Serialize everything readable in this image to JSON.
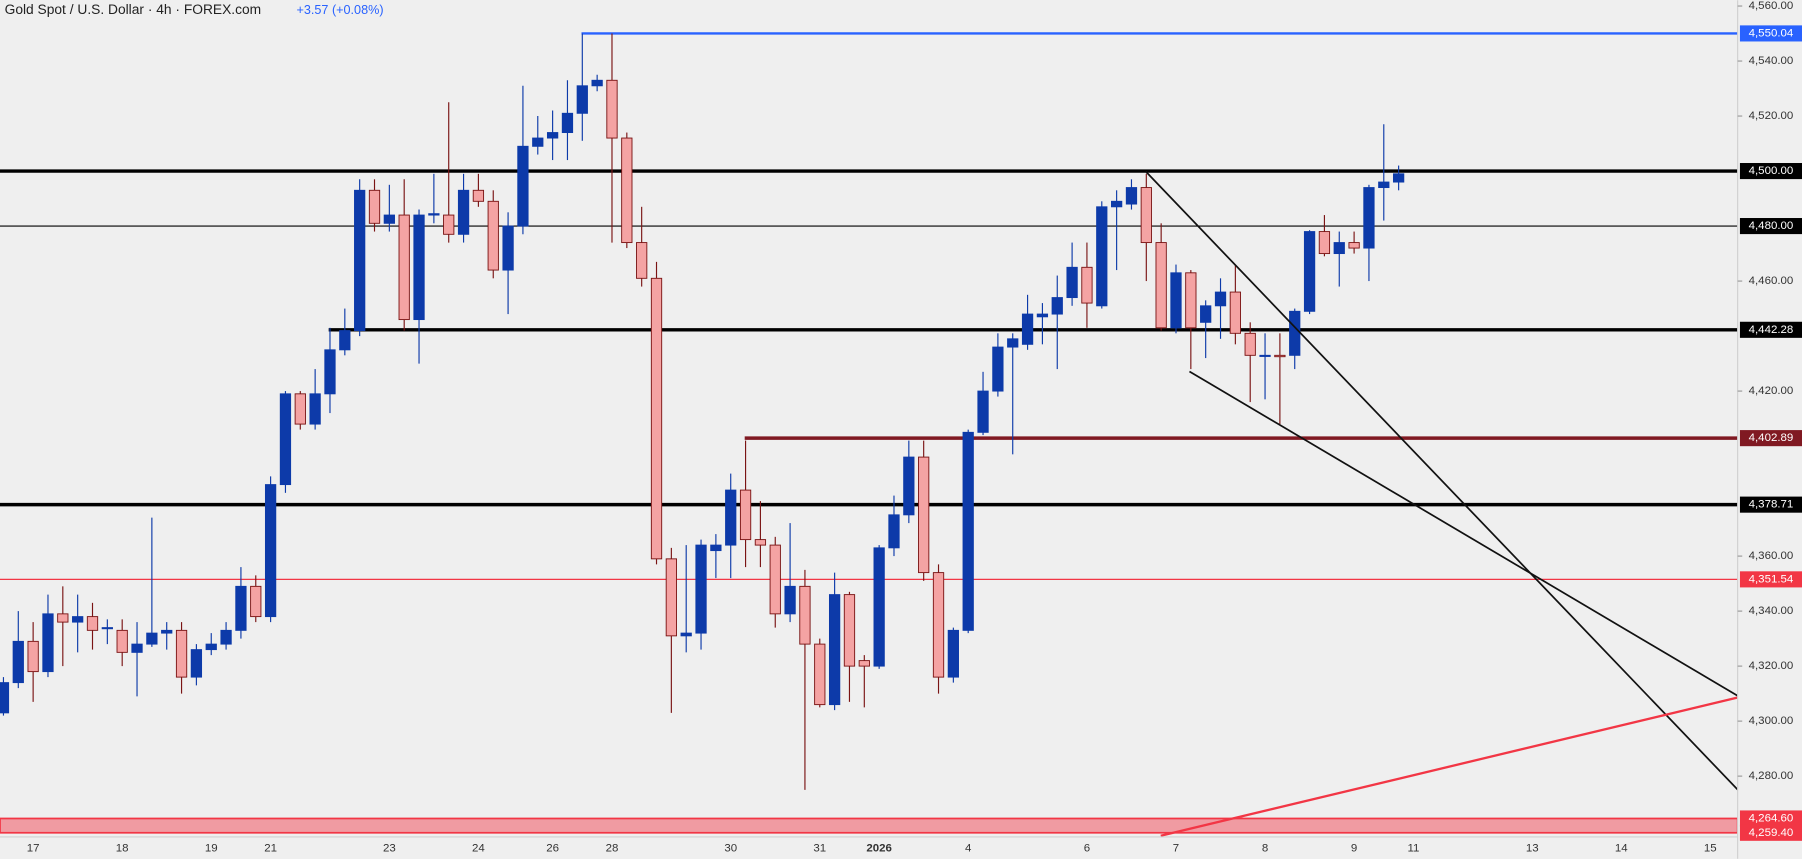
{
  "chart_data": {
    "type": "candlestick",
    "title": "Gold Spot / U.S. Dollar · 4h · FOREX.com",
    "change": "+3.57 (+0.08%)",
    "categories": [
      null,
      null,
      "17",
      null,
      null,
      null,
      null,
      null,
      "18",
      null,
      null,
      null,
      null,
      null,
      "19",
      null,
      null,
      null,
      "21",
      null,
      null,
      null,
      null,
      null,
      null,
      null,
      "23",
      null,
      null,
      null,
      null,
      null,
      "24",
      null,
      null,
      null,
      null,
      "26",
      null,
      null,
      null,
      "28",
      null,
      null,
      null,
      null,
      null,
      null,
      null,
      "30",
      null,
      null,
      null,
      null,
      null,
      "31",
      null,
      null,
      null,
      "2026",
      null,
      null,
      null,
      null,
      null,
      "4",
      null,
      null,
      null,
      null,
      null,
      null,
      null,
      "6",
      null,
      null,
      null,
      null,
      null,
      "7",
      null,
      null,
      null,
      null,
      null,
      "8",
      null,
      null,
      null,
      null,
      null,
      "9",
      null,
      null,
      null,
      "11",
      null,
      null,
      null,
      null,
      null,
      null,
      null,
      "13",
      null,
      null,
      null,
      null,
      null,
      "14",
      null,
      null,
      null,
      null,
      null,
      "15",
      null
    ],
    "open": [
      4303,
      4314,
      4329,
      4318,
      4339,
      4336,
      4338,
      4334,
      4333,
      4325,
      4328,
      4332,
      4333,
      4316,
      4326,
      4328,
      4333,
      4349,
      4338,
      4386,
      4419,
      4408,
      4419,
      4435,
      4442,
      4493,
      4481,
      4484,
      4446,
      4484,
      4484,
      4477,
      4493,
      4489,
      4464,
      4480,
      4509,
      4512,
      4514,
      4521,
      4531,
      4533,
      4512,
      4474,
      4461,
      4359,
      4331,
      4332,
      4362,
      4364,
      4384,
      4366,
      4364,
      4339,
      4349,
      4328,
      4306,
      4346,
      4322,
      4320,
      4363,
      4375,
      4396,
      4354,
      4316,
      4333,
      4405,
      4420,
      4436,
      4437,
      4447,
      4448,
      4454,
      4465,
      4451,
      4487,
      4488,
      4494,
      4474,
      4443,
      4463,
      4445,
      4451,
      4456,
      4441,
      4433,
      4433,
      4433,
      4449,
      4478,
      4470,
      4474,
      4472,
      4494,
      4496,
      null,
      null,
      null,
      null,
      null,
      null,
      null,
      null,
      null,
      null,
      null,
      null,
      null,
      null,
      null,
      null,
      null,
      null,
      null,
      null,
      null,
      null
    ],
    "high": [
      4316,
      4340,
      4336,
      4346,
      4349,
      4346,
      4343,
      4337,
      4337,
      4336,
      4374,
      4336,
      4336,
      4328,
      4332,
      4336,
      4356,
      4353,
      4389,
      4420,
      4420,
      4428,
      4443,
      4450,
      4497,
      4497,
      4495,
      4497,
      4486,
      4499,
      4525,
      4499,
      4499,
      4493,
      4485,
      4531,
      4520,
      4522,
      4533,
      4550,
      4535,
      4550,
      4514,
      4487,
      4467,
      4363,
      4364,
      4366,
      4368,
      4390,
      4402,
      4380,
      4367,
      4372,
      4355,
      4330,
      4354,
      4347,
      4324,
      4364,
      4382,
      4402,
      4402,
      4357,
      4334,
      4406,
      4427,
      4441,
      4441,
      4455,
      4452,
      4462,
      4474,
      4474,
      4489,
      4493,
      4497,
      4499,
      4481,
      4466,
      4464,
      4453,
      4461,
      4466,
      4445,
      4441,
      4441,
      4450,
      4478.5,
      4484,
      4478,
      4478,
      4495,
      4517,
      4502,
      null,
      null,
      null,
      null,
      null,
      null,
      null,
      null,
      null,
      null,
      null,
      null,
      null,
      null,
      null,
      null,
      null,
      null,
      null,
      null,
      null,
      null
    ],
    "low": [
      4302,
      4312,
      4307,
      4316,
      4320,
      4325,
      4326,
      4328,
      4320,
      4309,
      4327,
      4326,
      4310,
      4313,
      4324,
      4326,
      4330,
      4336,
      4336,
      4383,
      4406,
      4406,
      4412,
      4433,
      4440,
      4478,
      4478,
      4442,
      4430,
      4481,
      4474,
      4474,
      4487,
      4461,
      4448,
      4477,
      4506,
      4504,
      4504,
      4511,
      4529,
      4474,
      4472,
      4458,
      4357,
      4303,
      4325,
      4326,
      4352,
      4352,
      4356,
      4356,
      4334,
      4336,
      4275,
      4305,
      4304,
      4307,
      4305,
      4319,
      4360,
      4372,
      4351,
      4310,
      4314,
      4332,
      4404,
      4418,
      4397,
      4435,
      4437,
      4428,
      4451,
      4443,
      4450,
      4464,
      4486,
      4460,
      4442,
      4441,
      4428,
      4432,
      4439,
      4437,
      4416,
      4417,
      4408,
      4428,
      4448,
      4469,
      4458,
      4470,
      4460,
      4482,
      4493,
      null,
      null,
      null,
      null,
      null,
      null,
      null,
      null,
      null,
      null,
      null,
      null,
      null,
      null,
      null,
      null,
      null,
      null,
      null,
      null,
      null,
      null
    ],
    "close": [
      4314,
      4329,
      4318,
      4339,
      4336,
      4338,
      4333,
      4334,
      4325,
      4328,
      4332,
      4333,
      4316,
      4326,
      4328,
      4333,
      4349,
      4338,
      4386,
      4419,
      4408,
      4419,
      4435,
      4442,
      4493,
      4481,
      4484,
      4446,
      4484,
      4484.5,
      4477,
      4493,
      4489,
      4464,
      4480,
      4509,
      4512,
      4514,
      4521,
      4531,
      4533,
      4512,
      4474,
      4461,
      4359,
      4331,
      4332,
      4364,
      4364,
      4384,
      4366,
      4364,
      4339,
      4349,
      4328,
      4306,
      4346,
      4320,
      4320,
      4363,
      4375,
      4396,
      4354,
      4316,
      4333,
      4405,
      4420,
      4436,
      4439,
      4448,
      4448,
      4454,
      4465,
      4452,
      4487,
      4489,
      4494,
      4474,
      4443,
      4463,
      4443,
      4451,
      4456,
      4441,
      4433,
      4433,
      4432.5,
      4449,
      4478,
      4470,
      4474,
      4472,
      4494,
      4496,
      4499,
      null,
      null,
      null,
      null,
      null,
      null,
      null,
      null,
      null,
      null,
      null,
      null,
      null,
      null,
      null,
      null,
      null,
      null,
      null,
      null,
      null,
      null
    ],
    "up_color": "#0d3aa9",
    "down_color": "#f4a3a3",
    "down_edge_color": "#7a1414",
    "ylim": [
      4257.9,
      4562.1
    ],
    "yticks": [
      {
        "value": 4560,
        "label": "4,560.00"
      },
      {
        "value": 4540,
        "label": "4,540.00"
      },
      {
        "value": 4520,
        "label": "4,520.00"
      },
      {
        "value": 4460,
        "label": "4,460.00"
      },
      {
        "value": 4420,
        "label": "4,420.00"
      },
      {
        "value": 4360,
        "label": "4,360.00"
      },
      {
        "value": 4340,
        "label": "4,340.00"
      },
      {
        "value": 4320,
        "label": "4,320.00"
      },
      {
        "value": 4300,
        "label": "4,300.00"
      },
      {
        "value": 4280,
        "label": "4,280.00"
      }
    ],
    "levels": [
      {
        "value": 4550.04,
        "label": "4,550.04",
        "color": "#2962ff"
      },
      {
        "value": 4500,
        "label": "4,500.00",
        "color": "#000000"
      },
      {
        "value": 4480,
        "label": "4,480.00",
        "color": "#000000"
      },
      {
        "value": 4442.28,
        "label": "4,442.28",
        "color": "#000000"
      },
      {
        "value": 4402.89,
        "label": "4,402.89",
        "color": "#801922"
      },
      {
        "value": 4378.71,
        "label": "4,378.71",
        "color": "#000000"
      },
      {
        "value": 4351.54,
        "label": "4,351.54",
        "color": "#f23645"
      }
    ],
    "zone": {
      "from": {
        "value": 4259.4,
        "label": "4,259.40"
      },
      "to": {
        "value": 4264.6,
        "label": "4,264.60"
      },
      "color": "#f23645"
    }
  }
}
